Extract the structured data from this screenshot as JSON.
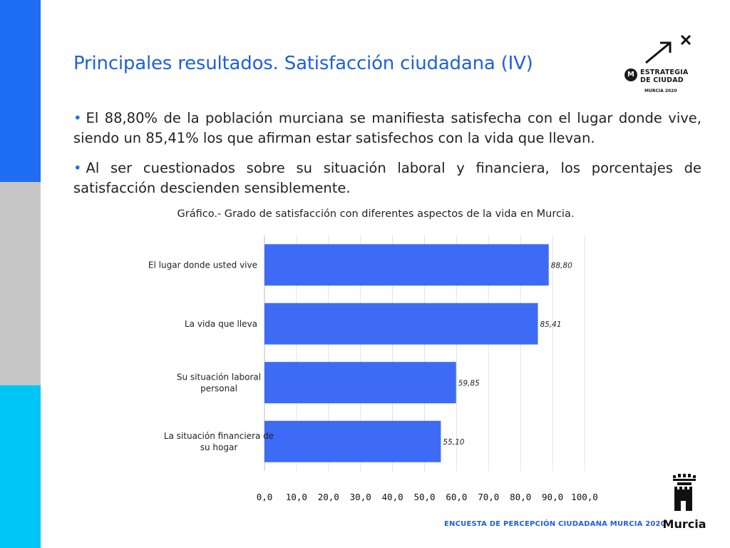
{
  "page": {
    "title": "Principales resultados. Satisfacción ciudadana (IV)",
    "paragraphs": [
      "El 88,80% de la población murciana se manifiesta satisfecha con el lugar donde vive, siendo un 85,41% los que afirman estar satisfechos con la vida que llevan.",
      "Al ser cuestionados sobre su situación laboral y financiera, los porcentajes de satisfacción descienden sensiblemente."
    ],
    "bullet": "•",
    "footer": "ENCUESTA DE PERCEPCIÓN CIUDADANA MURCIA 2020",
    "colors": {
      "accent_blue": "#1e6df2",
      "gray": "#c6c6c6",
      "cyan": "#00c6f7",
      "bar": "#3d6bf5"
    }
  },
  "logo": {
    "letter": "M",
    "line1": "ESTRATEGIA",
    "line2": "DE CIUDAD",
    "line3": "MURCIA 2020",
    "icon": "arrow-x-icon"
  },
  "crest": {
    "text": "Murcia",
    "icon": "castle-crest-icon"
  },
  "chart_data": {
    "type": "bar",
    "orientation": "horizontal",
    "title": "Gráfico.- Grado de satisfacción con diferentes aspectos de la vida en Murcia.",
    "categories": [
      [
        "El lugar donde usted vive"
      ],
      [
        "La vida que lleva"
      ],
      [
        "Su situación laboral",
        "personal"
      ],
      [
        "La situación financiera de",
        "su hogar"
      ]
    ],
    "values": [
      88.8,
      85.41,
      59.85,
      55.1
    ],
    "value_labels": [
      "88,80",
      "85,41",
      "59,85",
      "55,10"
    ],
    "xlim": [
      0,
      100
    ],
    "xticks": [
      "0,0",
      "10,0",
      "20,0",
      "30,0",
      "40,0",
      "50,0",
      "60,0",
      "70,0",
      "80,0",
      "90,0",
      "100,0"
    ],
    "grid": "vertical",
    "xlabel": "",
    "ylabel": ""
  }
}
